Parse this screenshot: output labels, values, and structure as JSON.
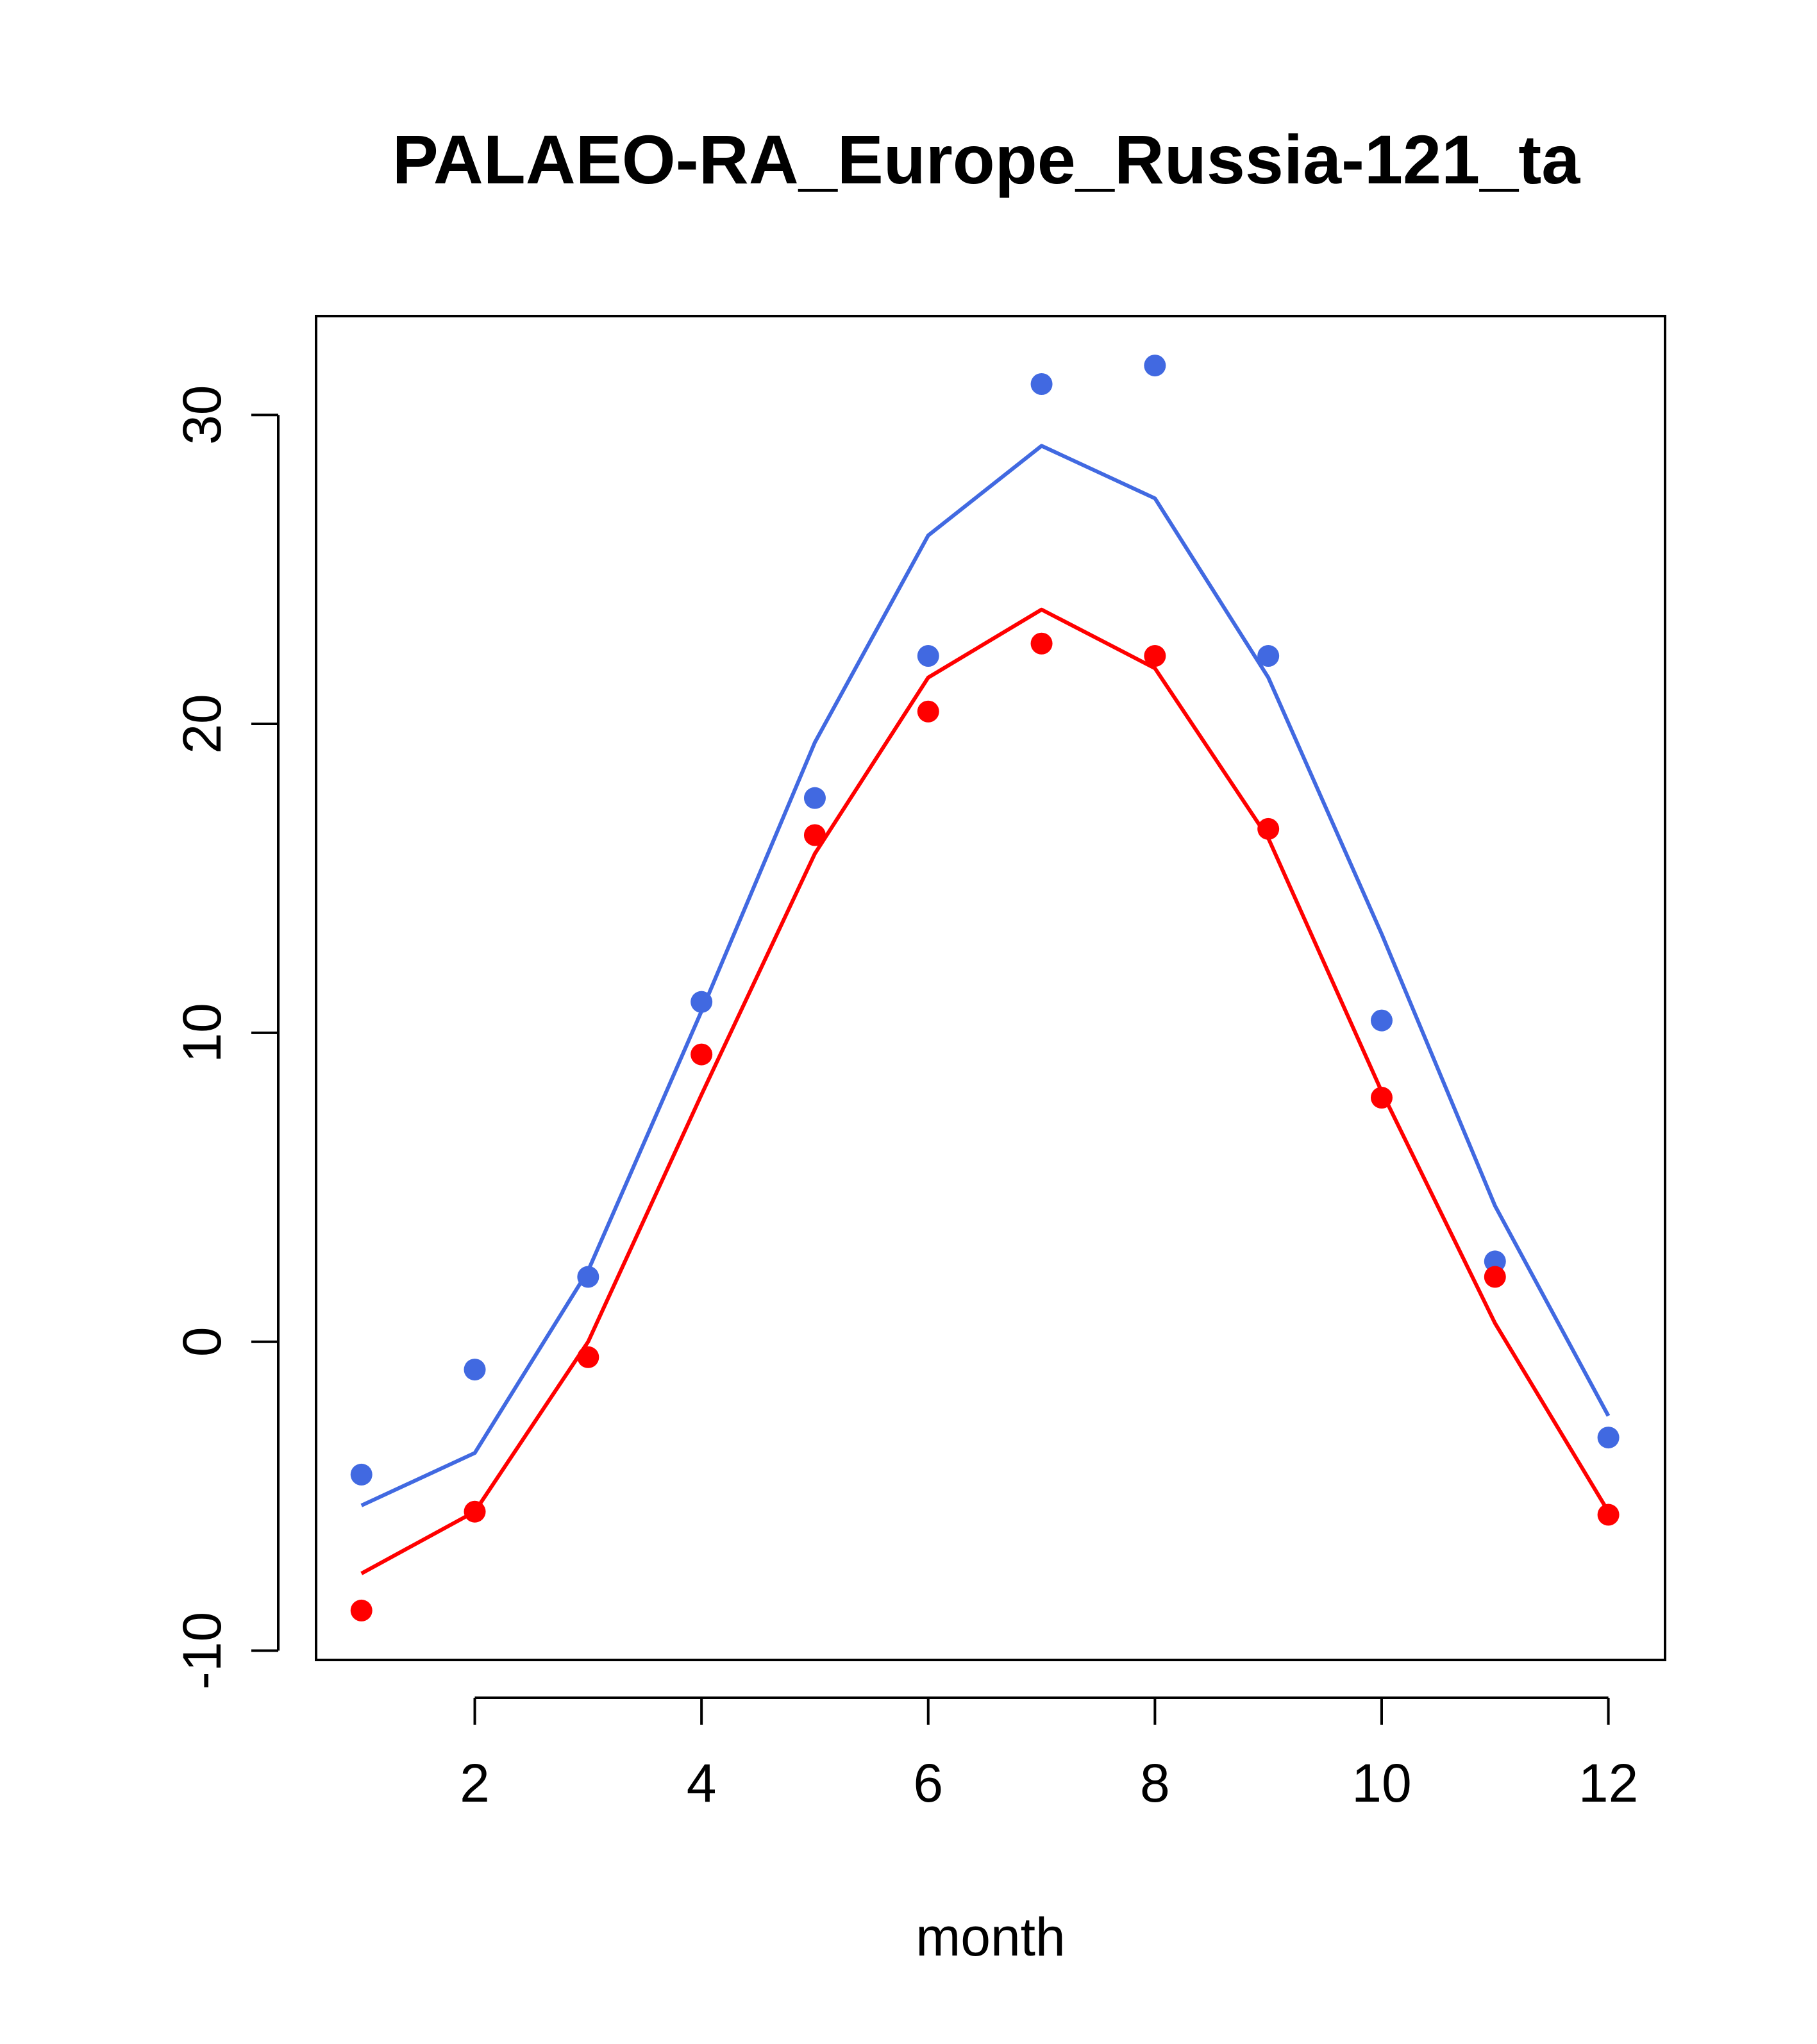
{
  "chart_data": {
    "type": "line",
    "title": "PALAEO-RA_Europe_Russia-121_ta",
    "xlabel": "month",
    "ylabel": "",
    "xlim": [
      0.6,
      12.5
    ],
    "ylim": [
      -10.3,
      33.2
    ],
    "x_ticks": [
      2,
      4,
      6,
      8,
      10,
      12
    ],
    "y_ticks": [
      -10,
      0,
      10,
      20,
      30
    ],
    "grid": false,
    "legend": "none",
    "x": [
      1,
      2,
      3,
      4,
      5,
      6,
      7,
      8,
      9,
      10,
      11,
      12
    ],
    "series": [
      {
        "color": "#4169E1",
        "line": [
          -5.3,
          -3.6,
          2.3,
          10.7,
          19.4,
          26.1,
          29.0,
          27.3,
          21.5,
          13.2,
          4.4,
          -2.4
        ],
        "points": [
          -4.3,
          -0.9,
          2.1,
          11.0,
          17.6,
          22.2,
          31.0,
          31.6,
          22.2,
          10.4,
          2.6,
          -3.1
        ]
      },
      {
        "color": "#FF0000",
        "line": [
          -7.5,
          -5.5,
          0.0,
          8.0,
          15.8,
          21.5,
          23.7,
          21.8,
          16.3,
          8.1,
          0.6,
          -5.5
        ],
        "points": [
          -8.7,
          -5.5,
          -0.5,
          9.3,
          16.4,
          20.4,
          22.6,
          22.2,
          16.6,
          7.9,
          2.1,
          -5.6
        ]
      }
    ]
  }
}
